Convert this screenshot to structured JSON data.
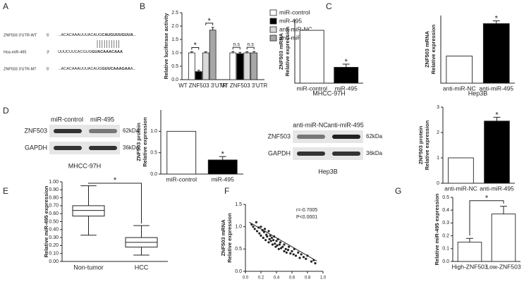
{
  "panel_labels": [
    "A",
    "B",
    "C",
    "D",
    "E",
    "F",
    "G"
  ],
  "sequences": [
    {
      "name": "ZNF503 3'UTR-WT",
      "end": "5'",
      "seq": "...ACACAAAUUUACAUG",
      "bold": "CAUGUUUGUUA",
      "tail": "..."
    },
    {
      "name": "Hsa-miR-495",
      "end": "3'",
      "seq": "UUUCUUCACGUG",
      "bold": "GUACAAACAAA",
      "tail": ""
    },
    {
      "name": "ZNF503 3'UTR-MT",
      "end": "5'",
      "seq": "...ACACAAAUUUACAUG",
      "bold": "GUUCAAAGAA",
      "tail": "A..."
    }
  ],
  "blots": [
    {
      "columns": [
        "miR-control",
        "miR-495"
      ],
      "rows": [
        "ZNF503",
        "GAPDH"
      ],
      "sizes": [
        "62kDa",
        "36kDa"
      ],
      "cell": "MHCC-97H"
    },
    {
      "columns": [
        "anti-miR-NC",
        "anti-miR-495"
      ],
      "rows": [
        "ZNF503",
        "GAPDH"
      ],
      "sizes": [
        "62kDa",
        "36kDa"
      ],
      "cell": "Hep3B"
    }
  ],
  "chart_data": [
    {
      "type": "grouped_bar",
      "ylabel": [
        "Relative luciferase activity"
      ],
      "categories": [
        "WT ZNF503 3'UTR",
        "MT ZNF503 3'UTR"
      ],
      "series": [
        {
          "name": "miR-control",
          "color": "#ffffff",
          "values": [
            1.0,
            1.0
          ],
          "errors": [
            0.04,
            0.05
          ]
        },
        {
          "name": "miR-495",
          "color": "#000000",
          "values": [
            0.3,
            0.97
          ],
          "errors": [
            0.05,
            0.05
          ]
        },
        {
          "name": "anti-miR-NC",
          "color": "#d9d9d9",
          "values": [
            1.0,
            1.0
          ],
          "errors": [
            0.04,
            0.04
          ]
        },
        {
          "name": "anti-miR-495",
          "color": "#a6a6a6",
          "values": [
            1.85,
            1.0
          ],
          "errors": [
            0.1,
            0.05
          ]
        }
      ],
      "ylim": [
        0,
        2.5
      ],
      "yticks": [
        {
          "value": 0,
          "label": "0.0"
        },
        0.5,
        {
          "value": 1,
          "label": "1.0"
        },
        1.5,
        {
          "value": 2,
          "label": "2.0"
        },
        2.5
      ],
      "annotations": [
        "*",
        "*",
        "n.s",
        "n.s"
      ]
    },
    {
      "type": "bar",
      "ylabel": [
        "ZNF503 mRNA",
        "Relative expression"
      ],
      "xlabel": "MHCC-97H",
      "categories": [
        "miR-control",
        "miR-495"
      ],
      "values": [
        1.0,
        0.3
      ],
      "errors": [
        0,
        0.06
      ],
      "colors": [
        "#ffffff",
        "#000000"
      ],
      "ylim": [
        0,
        1.2
      ],
      "yticks": [],
      "annotation": "*"
    },
    {
      "type": "bar",
      "ylabel": [
        "ZNF503 mRNA",
        "Relative expression"
      ],
      "xlabel": "Hep3B",
      "categories": [
        "anti-miR-NC",
        "anti-miR-495"
      ],
      "values": [
        1.0,
        2.2
      ],
      "errors": [
        0,
        0.1
      ],
      "colors": [
        "#ffffff",
        "#000000"
      ],
      "ylim": [
        0,
        2.5
      ],
      "yticks": [],
      "annotation": "*"
    },
    {
      "type": "bar",
      "ylabel": [
        "ZNF503 protein",
        "Relative expression"
      ],
      "categories": [
        "miR-control",
        "miR-495"
      ],
      "values": [
        1.0,
        0.33
      ],
      "errors": [
        0,
        0.08
      ],
      "colors": [
        "#ffffff",
        "#000000"
      ],
      "ylim": [
        0,
        1.5
      ],
      "yticks": [
        {
          "value": 0,
          "label": "0.0"
        },
        0.5,
        {
          "value": 1,
          "label": "1.0"
        }
      ],
      "annotation": "*"
    },
    {
      "type": "bar",
      "ylabel": [
        "ZNF503 protein",
        "Relative expression"
      ],
      "categories": [
        "anti-miR-NC",
        "anti-miR-495"
      ],
      "values": [
        1.0,
        2.45
      ],
      "errors": [
        0,
        0.15
      ],
      "colors": [
        "#ffffff",
        "#000000"
      ],
      "ylim": [
        0,
        3
      ],
      "yticks": [
        0,
        1,
        2,
        3
      ],
      "annotation": "*"
    },
    {
      "type": "box",
      "ylabel": [
        "Relative miR-495 expression"
      ],
      "categories": [
        "Non-tumor",
        "HCC"
      ],
      "boxes": [
        {
          "min": 0.33,
          "q1": 0.57,
          "median": 0.64,
          "q3": 0.7,
          "max": 0.95
        },
        {
          "min": 0.08,
          "q1": 0.18,
          "median": 0.24,
          "q3": 0.3,
          "max": 0.45
        }
      ],
      "ylim": [
        0,
        1
      ],
      "yticks": [
        {
          "value": 0,
          "label": "0.00"
        },
        {
          "value": 0.1,
          "label": "0.10"
        },
        {
          "value": 0.2,
          "label": "0.20"
        },
        {
          "value": 0.3,
          "label": "0.30"
        },
        {
          "value": 0.4,
          "label": "0.40"
        },
        {
          "value": 0.5,
          "label": "0.50"
        },
        {
          "value": 0.6,
          "label": "0.60"
        },
        {
          "value": 0.7,
          "label": "0.70"
        },
        {
          "value": 0.8,
          "label": "0.80"
        },
        {
          "value": 0.9,
          "label": "0.90"
        },
        {
          "value": 1,
          "label": "1.00"
        }
      ],
      "annotation": "*"
    },
    {
      "type": "scatter",
      "ylabel": [
        "ZNF503 mRNA",
        "Relative expression"
      ],
      "xlabel": "Relative miR-495 expression",
      "annotations": [
        "r=-0.7005",
        "P<0.0001"
      ],
      "x": [
        0.08,
        0.1,
        0.12,
        0.14,
        0.15,
        0.17,
        0.18,
        0.2,
        0.2,
        0.22,
        0.23,
        0.24,
        0.25,
        0.26,
        0.27,
        0.28,
        0.3,
        0.3,
        0.31,
        0.32,
        0.33,
        0.34,
        0.35,
        0.36,
        0.37,
        0.38,
        0.39,
        0.4,
        0.41,
        0.42,
        0.43,
        0.44,
        0.45,
        0.46,
        0.48,
        0.5,
        0.5,
        0.52,
        0.53,
        0.55,
        0.56,
        0.58,
        0.6,
        0.62,
        0.63,
        0.65,
        0.68,
        0.7,
        0.72,
        0.75,
        0.78,
        0.8,
        0.85,
        0.88,
        0.9
      ],
      "values": [
        1.05,
        1.0,
        0.95,
        1.1,
        0.9,
        0.98,
        0.85,
        1.0,
        0.8,
        0.92,
        0.75,
        0.88,
        0.95,
        0.7,
        0.82,
        0.78,
        0.9,
        0.65,
        0.72,
        0.8,
        0.68,
        0.75,
        0.6,
        0.7,
        0.78,
        0.62,
        0.55,
        0.68,
        0.58,
        0.72,
        0.5,
        0.6,
        0.65,
        0.52,
        0.55,
        0.45,
        0.6,
        0.5,
        0.42,
        0.48,
        0.55,
        0.4,
        0.45,
        0.38,
        0.5,
        0.35,
        0.42,
        0.3,
        0.38,
        0.32,
        0.28,
        0.35,
        0.22,
        0.25,
        0.18
      ],
      "fit": {
        "x": [
          0.05,
          0.92
        ],
        "y": [
          1.1,
          0.23
        ]
      },
      "xlim": [
        0,
        1
      ],
      "xticks": [
        {
          "value": 0,
          "label": "0.0"
        },
        0.2,
        0.4,
        0.6,
        0.8,
        {
          "value": 1,
          "label": "1.0"
        }
      ],
      "ylim": [
        0,
        1.5
      ],
      "yticks": [
        {
          "value": 0,
          "label": "0.0"
        },
        0.5,
        {
          "value": 1,
          "label": "1.0"
        },
        1.5
      ]
    },
    {
      "type": "bar",
      "ylabel": [
        "Relative miR-495 expression"
      ],
      "categories": [
        "High-ZNF503",
        "Low-ZNF503"
      ],
      "values": [
        0.15,
        0.37
      ],
      "errors": [
        0.03,
        0.06
      ],
      "colors": [
        "#ffffff",
        "#ffffff"
      ],
      "ylim": [
        0,
        0.5
      ],
      "yticks": [
        {
          "value": 0,
          "label": "0.0"
        },
        0.1,
        0.2,
        0.3,
        0.4,
        0.5
      ],
      "annotation": "*",
      "bracket": true
    }
  ]
}
